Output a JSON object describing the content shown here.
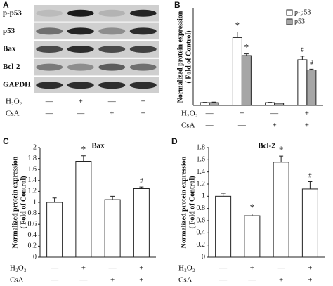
{
  "blot": {
    "panel": "A",
    "rows": [
      "p-p53",
      "p53",
      "Bax",
      "Bcl-2",
      "GAPDH"
    ]
  },
  "treatments": [
    {
      "label": "H₂O₂",
      "signs": [
        "—",
        "+",
        "—",
        "+"
      ]
    },
    {
      "label": "CsA",
      "signs": [
        "—",
        "—",
        "+",
        "+"
      ]
    }
  ],
  "chart_data": [
    {
      "type": "bar",
      "panel": "B",
      "ylabel": [
        "Normalized protein expression",
        "( Fold of Control)"
      ],
      "ylim": [
        0,
        35
      ],
      "series": [
        {
          "name": "p-p53",
          "color": "#ffffff",
          "values": [
            1,
            24.5,
            1,
            16.5
          ],
          "errors": [
            0.1,
            2,
            0.1,
            1.3
          ],
          "annotations": [
            null,
            "*",
            null,
            "#"
          ]
        },
        {
          "name": "p53",
          "color": "#a6a6a6",
          "values": [
            1,
            18,
            0.8,
            12.8
          ],
          "errors": [
            0.2,
            0.6,
            0.1,
            0.3
          ],
          "annotations": [
            null,
            "*",
            null,
            "#"
          ]
        }
      ],
      "legend": "upper right"
    },
    {
      "type": "bar",
      "panel": "C",
      "title": "Bax",
      "ylabel": [
        "Normalized protein expression",
        "( Fold of Control)"
      ],
      "ylim": [
        0,
        2
      ],
      "yticks": [
        0,
        0.2,
        0.4,
        0.6,
        0.8,
        1,
        1.2,
        1.4,
        1.6,
        1.8,
        2
      ],
      "color": "#ffffff",
      "values": [
        1,
        1.75,
        1.05,
        1.25
      ],
      "errors": [
        0.08,
        0.1,
        0.06,
        0.03
      ],
      "annotations": [
        null,
        "*",
        null,
        "#"
      ]
    },
    {
      "type": "bar",
      "panel": "D",
      "title": "Bcl-2",
      "ylabel": [
        "Normalized protein expression",
        "( Fold of Control)"
      ],
      "ylim": [
        0,
        1.8
      ],
      "yticks": [
        0,
        0.2,
        0.4,
        0.6,
        0.8,
        1,
        1.2,
        1.4,
        1.6,
        1.8
      ],
      "color": "#ffffff",
      "values": [
        1,
        0.68,
        1.56,
        1.12
      ],
      "errors": [
        0.05,
        0.03,
        0.1,
        0.12
      ],
      "annotations": [
        null,
        "*",
        "*",
        "#"
      ]
    }
  ]
}
